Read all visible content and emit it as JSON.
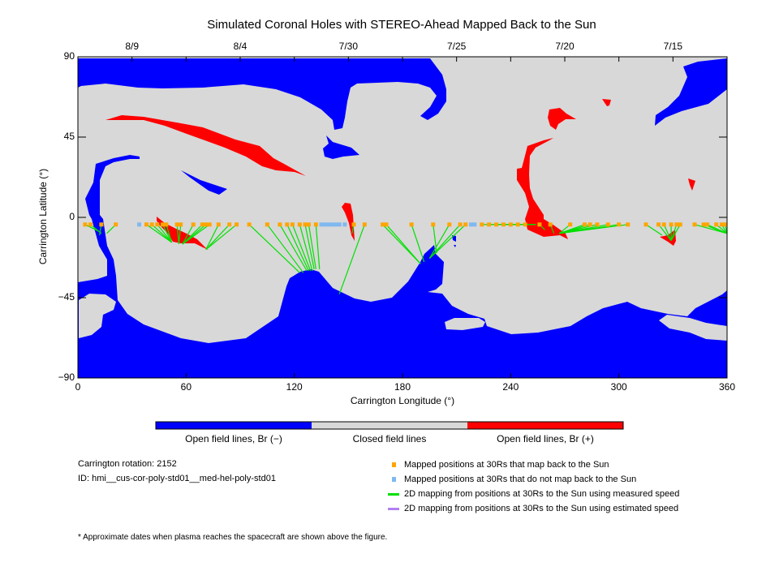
{
  "title": "Simulated Coronal Holes with STEREO-Ahead Mapped Back to the Sun",
  "colors": {
    "open_neg": "#0000ff",
    "closed": "#d8d8d8",
    "open_pos": "#ff0000",
    "mapped": "#ffa500",
    "not_mapped": "#80b8f0",
    "measured": "#00e000",
    "estimated": "#b080f0"
  },
  "colorbar": {
    "labels": [
      "Open field lines, Br (−)",
      "Closed field lines",
      "Open field lines, Br (+)"
    ]
  },
  "info": {
    "rotation": "Carrington rotation: 2152",
    "id": "ID: hmi__cus-cor-poly-std01__med-hel-poly-std01",
    "footnote": "* Approximate dates when plasma reaches the spacecraft are shown above the figure."
  },
  "legend": [
    {
      "label": "Mapped positions at 30Rs that map back to the Sun",
      "kind": "square",
      "color_key": "mapped"
    },
    {
      "label": "Mapped positions at 30Rs that do not map back to the Sun",
      "kind": "square",
      "color_key": "not_mapped"
    },
    {
      "label": "2D mapping from positions at 30Rs to the Sun using measured speed",
      "kind": "line",
      "color_key": "measured"
    },
    {
      "label": "2D mapping from positions at 30Rs to the Sun using estimated speed",
      "kind": "line",
      "color_key": "estimated"
    }
  ],
  "chart_data": {
    "type": "scatter",
    "title": "Simulated Coronal Holes with STEREO-Ahead Mapped Back to the Sun",
    "xlabel": "Carrington Longitude (°)",
    "ylabel": "Carrington Latitude (°)",
    "xlim": [
      0,
      360
    ],
    "ylim": [
      -90,
      90
    ],
    "xticks": [
      "0",
      "60",
      "120",
      "180",
      "240",
      "300",
      "360"
    ],
    "xtick_values": [
      0,
      60,
      120,
      180,
      240,
      300,
      360
    ],
    "yticks": [
      "-90",
      "-45",
      "0",
      "45",
      "90"
    ],
    "ytick_values": [
      -90,
      -45,
      0,
      45,
      90
    ],
    "top_dates": [
      "8/9",
      "8/4",
      "7/30",
      "7/25",
      "7/20",
      "7/15"
    ],
    "top_date_lons": [
      30,
      90,
      150,
      210,
      270,
      330
    ],
    "mapped_points": [
      [
        4,
        -4,
        12,
        -8
      ],
      [
        7,
        -4,
        13,
        -9
      ],
      [
        13,
        -4,
        12,
        -10
      ],
      [
        21,
        -4,
        16,
        -9
      ],
      [
        38,
        -4,
        52,
        -14
      ],
      [
        41,
        -4,
        52,
        -14
      ],
      [
        44,
        -4,
        52,
        -14
      ],
      [
        47,
        -4,
        52,
        -14
      ],
      [
        49,
        -4,
        52,
        -14
      ],
      [
        55,
        -4,
        56,
        -15
      ],
      [
        57,
        -4,
        56,
        -15
      ],
      [
        64,
        -4,
        58,
        -15
      ],
      [
        69,
        -4,
        58,
        -15
      ],
      [
        71,
        -4,
        58,
        -15
      ],
      [
        73,
        -4,
        58,
        -15
      ],
      [
        78,
        -4,
        71,
        -18
      ],
      [
        84,
        -4,
        71,
        -18
      ],
      [
        88,
        -4,
        71,
        -18
      ],
      [
        95,
        -4,
        123,
        -31
      ],
      [
        105,
        -4,
        125,
        -31
      ],
      [
        112,
        -4,
        127,
        -30
      ],
      [
        116,
        -4,
        128,
        -30
      ],
      [
        119,
        -4,
        129,
        -30
      ],
      [
        123,
        -4,
        130,
        -30
      ],
      [
        126,
        -4,
        131,
        -29
      ],
      [
        128,
        -4,
        132,
        -29
      ],
      [
        132,
        -4,
        134,
        -29
      ],
      [
        153,
        -4,
        152,
        -9
      ],
      [
        159,
        -4,
        145,
        -43
      ],
      [
        169,
        -4,
        190,
        -26
      ],
      [
        171,
        -4,
        190,
        -26
      ],
      [
        185,
        -4,
        192,
        -25
      ],
      [
        197,
        -4,
        199,
        -20
      ],
      [
        206,
        -4,
        195,
        -23
      ],
      [
        212,
        -4,
        195,
        -23
      ],
      [
        215,
        -4,
        195,
        -23
      ],
      [
        224,
        -4,
        254,
        -4
      ],
      [
        228,
        -4,
        254,
        -4
      ],
      [
        232,
        -4,
        254,
        -4
      ],
      [
        236,
        -4,
        254,
        -4
      ],
      [
        240,
        -4,
        254,
        -4
      ],
      [
        244,
        -4,
        254,
        -4
      ],
      [
        248,
        -4,
        254,
        -4
      ],
      [
        256,
        -4,
        259,
        -7
      ],
      [
        262,
        -4,
        264,
        -9
      ],
      [
        273,
        -4,
        267,
        -9
      ],
      [
        281,
        -4,
        267,
        -9
      ],
      [
        284,
        -4,
        267,
        -9
      ],
      [
        288,
        -4,
        267,
        -9
      ],
      [
        294,
        -4,
        267,
        -9
      ],
      [
        300,
        -4,
        267,
        -9
      ],
      [
        305,
        -4,
        267,
        -9
      ],
      [
        315,
        -4,
        324,
        -10
      ],
      [
        322,
        -4,
        329,
        -13
      ],
      [
        325,
        -4,
        329,
        -13
      ],
      [
        329,
        -4,
        329,
        -13
      ],
      [
        332,
        -4,
        329,
        -13
      ],
      [
        334,
        -4,
        329,
        -13
      ],
      [
        342,
        -4,
        360,
        -9
      ],
      [
        347,
        -4,
        360,
        -9
      ],
      [
        349,
        -4,
        360,
        -9
      ],
      [
        354,
        -4,
        360,
        -9
      ],
      [
        357,
        -4,
        360,
        -9
      ],
      [
        359,
        -4,
        360,
        -9
      ]
    ],
    "unmapped_points": [
      [
        34,
        -4
      ],
      [
        135,
        -4
      ],
      [
        137,
        -4
      ],
      [
        139,
        -4
      ],
      [
        141,
        -4
      ],
      [
        143,
        -4
      ],
      [
        145,
        -4
      ],
      [
        148,
        -4
      ],
      [
        218,
        -4
      ],
      [
        220,
        -4
      ]
    ]
  }
}
